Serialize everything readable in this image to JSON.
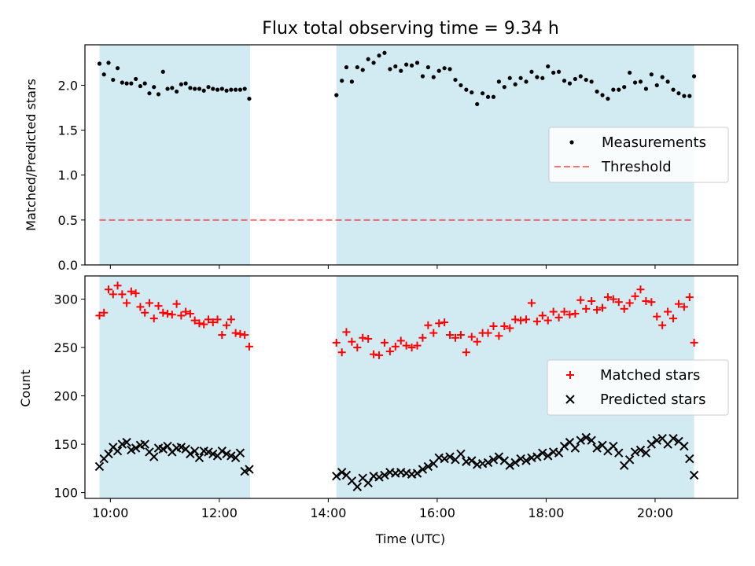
{
  "chart_data": [
    {
      "type": "scatter",
      "title": "Flux total observing time = 9.34 h",
      "xlabel": "",
      "ylabel": "Matched/Predicted stars",
      "ylim": [
        0,
        2.45
      ],
      "yticks": [
        "0.0",
        "0.5",
        "1.0",
        "1.5",
        "2.0"
      ],
      "xlim": [
        "09:32",
        "21:31"
      ],
      "grid": false,
      "legend": "center-right",
      "shaded_spans": [
        [
          "09:48",
          "12:34"
        ],
        [
          "14:09",
          "20:43"
        ]
      ],
      "shade_color": "#add8e6",
      "threshold": {
        "name": "Threshold",
        "value": 0.5,
        "color": "#ff0000"
      },
      "series": [
        {
          "name": "Measurements",
          "color": "#000000",
          "x": [
            "09:48",
            "09:53",
            "09:58",
            "10:03",
            "10:08",
            "10:13",
            "10:18",
            "10:23",
            "10:28",
            "10:33",
            "10:38",
            "10:43",
            "10:48",
            "10:53",
            "10:58",
            "11:03",
            "11:08",
            "11:13",
            "11:18",
            "11:23",
            "11:28",
            "11:33",
            "11:38",
            "11:43",
            "11:48",
            "11:53",
            "11:58",
            "12:03",
            "12:08",
            "12:13",
            "12:18",
            "12:23",
            "12:28",
            "12:33",
            "14:09",
            "14:15",
            "14:20",
            "14:26",
            "14:32",
            "14:38",
            "14:44",
            "14:50",
            "14:56",
            "15:02",
            "15:08",
            "15:14",
            "15:20",
            "15:26",
            "15:32",
            "15:38",
            "15:44",
            "15:50",
            "15:56",
            "16:02",
            "16:08",
            "16:14",
            "16:20",
            "16:26",
            "16:32",
            "16:38",
            "16:44",
            "16:50",
            "16:56",
            "17:02",
            "17:08",
            "17:14",
            "17:20",
            "17:26",
            "17:32",
            "17:38",
            "17:44",
            "17:50",
            "17:56",
            "18:02",
            "18:08",
            "18:14",
            "18:20",
            "18:26",
            "18:32",
            "18:38",
            "18:44",
            "18:50",
            "18:56",
            "19:02",
            "19:08",
            "19:14",
            "19:20",
            "19:26",
            "19:32",
            "19:38",
            "19:44",
            "19:50",
            "19:56",
            "20:02",
            "20:08",
            "20:14",
            "20:20",
            "20:26",
            "20:32",
            "20:38",
            "20:43"
          ],
          "values": [
            2.24,
            2.12,
            2.25,
            2.06,
            2.19,
            2.03,
            2.02,
            2.02,
            2.07,
            1.99,
            2.02,
            1.91,
            1.98,
            1.9,
            2.15,
            1.96,
            1.97,
            1.93,
            2.01,
            2.02,
            1.97,
            1.96,
            1.96,
            1.94,
            1.98,
            1.96,
            1.95,
            1.96,
            1.94,
            1.95,
            1.95,
            1.95,
            1.96,
            1.85,
            1.89,
            2.05,
            2.2,
            2.04,
            2.2,
            2.17,
            2.29,
            2.25,
            2.33,
            2.36,
            2.18,
            2.21,
            2.16,
            2.23,
            2.22,
            2.25,
            2.1,
            2.2,
            2.09,
            2.16,
            2.19,
            2.18,
            2.06,
            2.0,
            1.95,
            1.92,
            1.79,
            1.91,
            1.87,
            1.87,
            2.04,
            1.98,
            2.08,
            2.01,
            2.08,
            2.04,
            2.15,
            2.09,
            2.08,
            2.21,
            2.14,
            2.15,
            2.05,
            2.02,
            2.07,
            2.1,
            2.06,
            2.04,
            1.93,
            1.89,
            1.85,
            1.95,
            1.95,
            1.98,
            2.14,
            2.03,
            2.04,
            1.96,
            2.12,
            2.0,
            2.09,
            2.04,
            1.95,
            1.91,
            1.88,
            1.88,
            2.1
          ]
        }
      ]
    },
    {
      "type": "scatter",
      "title": "",
      "xlabel": "Time (UTC)",
      "ylabel": "Count",
      "ylim": [
        94,
        324
      ],
      "yticks": [
        "100",
        "150",
        "200",
        "250",
        "300"
      ],
      "xticks": [
        "10:00",
        "12:00",
        "14:00",
        "16:00",
        "18:00",
        "20:00"
      ],
      "xlim": [
        "09:32",
        "21:31"
      ],
      "grid": false,
      "legend": "center-right",
      "shaded_spans": [
        [
          "09:48",
          "12:34"
        ],
        [
          "14:09",
          "20:43"
        ]
      ],
      "shade_color": "#add8e6",
      "series": [
        {
          "name": "Matched stars",
          "marker": "plus",
          "color": "#ff0000",
          "x": [
            "09:48",
            "09:53",
            "09:58",
            "10:03",
            "10:08",
            "10:13",
            "10:18",
            "10:23",
            "10:28",
            "10:33",
            "10:38",
            "10:43",
            "10:48",
            "10:53",
            "10:58",
            "11:03",
            "11:08",
            "11:13",
            "11:18",
            "11:23",
            "11:28",
            "11:33",
            "11:38",
            "11:43",
            "11:48",
            "11:53",
            "11:58",
            "12:03",
            "12:08",
            "12:13",
            "12:18",
            "12:23",
            "12:28",
            "12:33",
            "14:09",
            "14:15",
            "14:20",
            "14:26",
            "14:32",
            "14:38",
            "14:44",
            "14:50",
            "14:56",
            "15:02",
            "15:08",
            "15:14",
            "15:20",
            "15:26",
            "15:32",
            "15:38",
            "15:44",
            "15:50",
            "15:56",
            "16:02",
            "16:08",
            "16:14",
            "16:20",
            "16:26",
            "16:32",
            "16:38",
            "16:44",
            "16:50",
            "16:56",
            "17:02",
            "17:08",
            "17:14",
            "17:20",
            "17:26",
            "17:32",
            "17:38",
            "17:44",
            "17:50",
            "17:56",
            "18:02",
            "18:08",
            "18:14",
            "18:20",
            "18:26",
            "18:32",
            "18:38",
            "18:44",
            "18:50",
            "18:56",
            "19:02",
            "19:08",
            "19:14",
            "19:20",
            "19:26",
            "19:32",
            "19:38",
            "19:44",
            "19:50",
            "19:56",
            "20:02",
            "20:08",
            "20:14",
            "20:20",
            "20:26",
            "20:32",
            "20:38",
            "20:43"
          ],
          "values": [
            283,
            286,
            310,
            305,
            314,
            305,
            296,
            308,
            306,
            292,
            286,
            296,
            280,
            293,
            286,
            285,
            284,
            295,
            283,
            287,
            285,
            278,
            275,
            274,
            279,
            276,
            279,
            263,
            273,
            279,
            265,
            264,
            263,
            251,
            255,
            245,
            266,
            256,
            250,
            260,
            259,
            243,
            242,
            255,
            246,
            251,
            257,
            252,
            250,
            252,
            260,
            273,
            265,
            275,
            276,
            263,
            260,
            263,
            245,
            261,
            256,
            265,
            265,
            272,
            262,
            272,
            270,
            279,
            278,
            279,
            296,
            277,
            283,
            278,
            287,
            281,
            287,
            284,
            285,
            299,
            290,
            298,
            289,
            291,
            302,
            300,
            297,
            290,
            296,
            303,
            310,
            298,
            297,
            282,
            273,
            287,
            280,
            295,
            292,
            302,
            255
          ]
        },
        {
          "name": "Predicted stars",
          "marker": "x",
          "color": "#000000",
          "x": [
            "09:48",
            "09:53",
            "09:58",
            "10:03",
            "10:08",
            "10:13",
            "10:18",
            "10:23",
            "10:28",
            "10:33",
            "10:38",
            "10:43",
            "10:48",
            "10:53",
            "10:58",
            "11:03",
            "11:08",
            "11:13",
            "11:18",
            "11:23",
            "11:28",
            "11:33",
            "11:38",
            "11:43",
            "11:48",
            "11:53",
            "11:58",
            "12:03",
            "12:08",
            "12:13",
            "12:18",
            "12:23",
            "12:28",
            "12:33",
            "14:09",
            "14:15",
            "14:20",
            "14:26",
            "14:32",
            "14:38",
            "14:44",
            "14:50",
            "14:56",
            "15:02",
            "15:08",
            "15:14",
            "15:20",
            "15:26",
            "15:32",
            "15:38",
            "15:44",
            "15:50",
            "15:56",
            "16:02",
            "16:08",
            "16:14",
            "16:20",
            "16:26",
            "16:32",
            "16:38",
            "16:44",
            "16:50",
            "16:56",
            "17:02",
            "17:08",
            "17:14",
            "17:20",
            "17:26",
            "17:32",
            "17:38",
            "17:44",
            "17:50",
            "17:56",
            "18:02",
            "18:08",
            "18:14",
            "18:20",
            "18:26",
            "18:32",
            "18:38",
            "18:44",
            "18:50",
            "18:56",
            "19:02",
            "19:08",
            "19:14",
            "19:20",
            "19:26",
            "19:32",
            "19:38",
            "19:44",
            "19:50",
            "19:56",
            "20:02",
            "20:08",
            "20:14",
            "20:20",
            "20:26",
            "20:32",
            "20:38",
            "20:43"
          ],
          "values": [
            127,
            135,
            140,
            147,
            143,
            150,
            152,
            144,
            146,
            149,
            150,
            142,
            137,
            146,
            145,
            148,
            142,
            146,
            147,
            145,
            140,
            143,
            136,
            143,
            142,
            140,
            138,
            143,
            140,
            138,
            136,
            141,
            122,
            124,
            117,
            121,
            118,
            112,
            106,
            115,
            110,
            117,
            116,
            118,
            121,
            120,
            121,
            120,
            119,
            120,
            124,
            127,
            130,
            136,
            135,
            137,
            134,
            140,
            132,
            133,
            129,
            130,
            131,
            134,
            137,
            133,
            128,
            131,
            135,
            133,
            136,
            137,
            141,
            138,
            142,
            141,
            148,
            152,
            146,
            154,
            157,
            154,
            146,
            149,
            143,
            148,
            141,
            128,
            134,
            142,
            144,
            141,
            150,
            154,
            156,
            150,
            156,
            153,
            148,
            135,
            118
          ]
        }
      ]
    }
  ]
}
